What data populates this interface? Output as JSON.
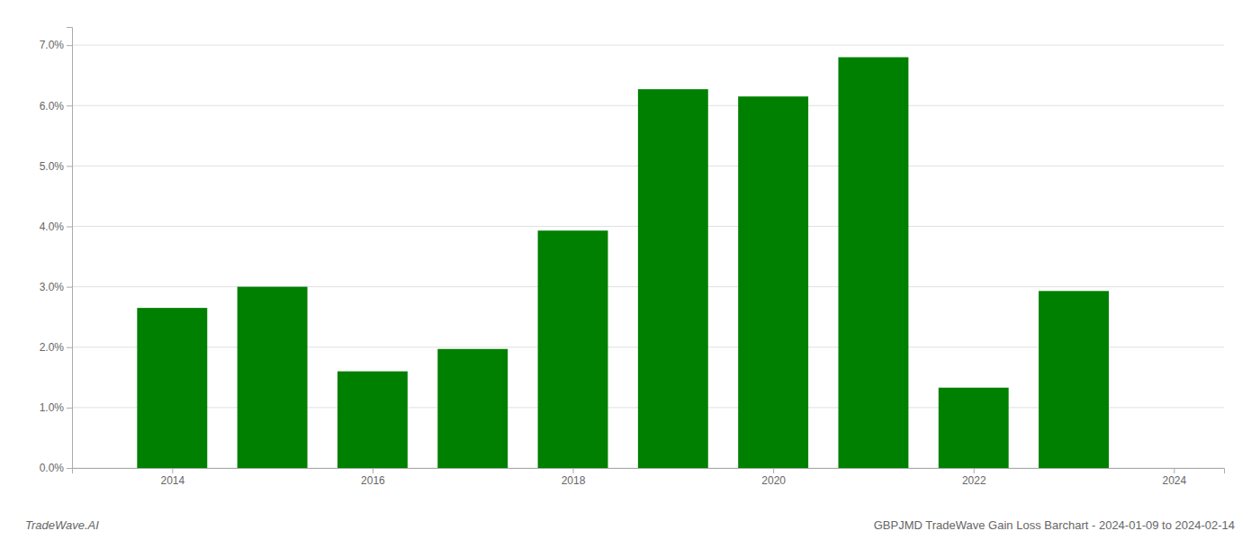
{
  "chart_data": {
    "type": "bar",
    "title": "GBPJMD TradeWave Gain Loss Barchart - 2024-01-09 to 2024-02-14",
    "annotations": [
      "TradeWave.AI"
    ],
    "x": [
      2014,
      2015,
      2016,
      2017,
      2018,
      2019,
      2020,
      2021,
      2022,
      2023
    ],
    "values": [
      0.0265,
      0.03,
      0.016,
      0.0197,
      0.0393,
      0.0627,
      0.0615,
      0.068,
      0.0133,
      0.0293
    ],
    "color": "#008000",
    "xlim": [
      2013.0,
      2024.5
    ],
    "xticks": [
      2014,
      2016,
      2018,
      2020,
      2022,
      2024
    ],
    "ylim": [
      0.0,
      0.073
    ],
    "yticks": [
      {
        "value": 0.0,
        "label": "0.0%"
      },
      {
        "value": 0.01,
        "label": "1.0%"
      },
      {
        "value": 0.02,
        "label": "2.0%"
      },
      {
        "value": 0.03,
        "label": "3.0%"
      },
      {
        "value": 0.04,
        "label": "4.0%"
      },
      {
        "value": 0.05,
        "label": "5.0%"
      },
      {
        "value": 0.06,
        "label": "6.0%"
      },
      {
        "value": 0.07,
        "label": "7.0%"
      }
    ],
    "grid": true
  }
}
